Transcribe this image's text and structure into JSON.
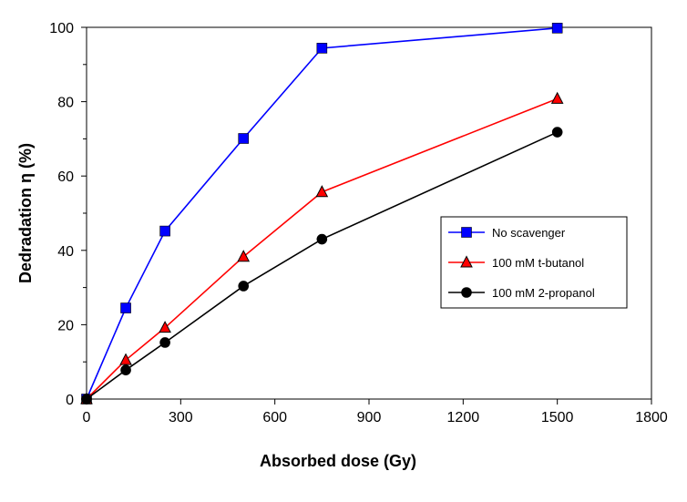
{
  "chart_data": {
    "type": "line",
    "title": "",
    "xlabel": "Absorbed dose (Gy)",
    "ylabel": "Dedradation η (%)",
    "xlim": [
      0,
      1800
    ],
    "ylim": [
      0,
      100
    ],
    "xticks": [
      0,
      300,
      600,
      900,
      1200,
      1500,
      1800
    ],
    "yticks": [
      0,
      20,
      40,
      60,
      80,
      100
    ],
    "grid": false,
    "legend_position": "right-middle",
    "x": [
      0,
      125,
      250,
      500,
      750,
      1500
    ],
    "series": [
      {
        "name": "No scavenger",
        "color": "#0000ff",
        "marker": "square",
        "values": [
          0,
          24.5,
          45.2,
          70.1,
          94.4,
          99.8
        ]
      },
      {
        "name": "100 mM t-butanol",
        "color": "#ff0000",
        "marker": "triangle",
        "values": [
          0,
          10.5,
          19.2,
          38.3,
          55.7,
          80.8
        ]
      },
      {
        "name": "100 mM 2-propanol",
        "color": "#000000",
        "marker": "circle",
        "values": [
          0,
          7.8,
          15.2,
          30.4,
          43.0,
          71.8
        ]
      }
    ]
  }
}
